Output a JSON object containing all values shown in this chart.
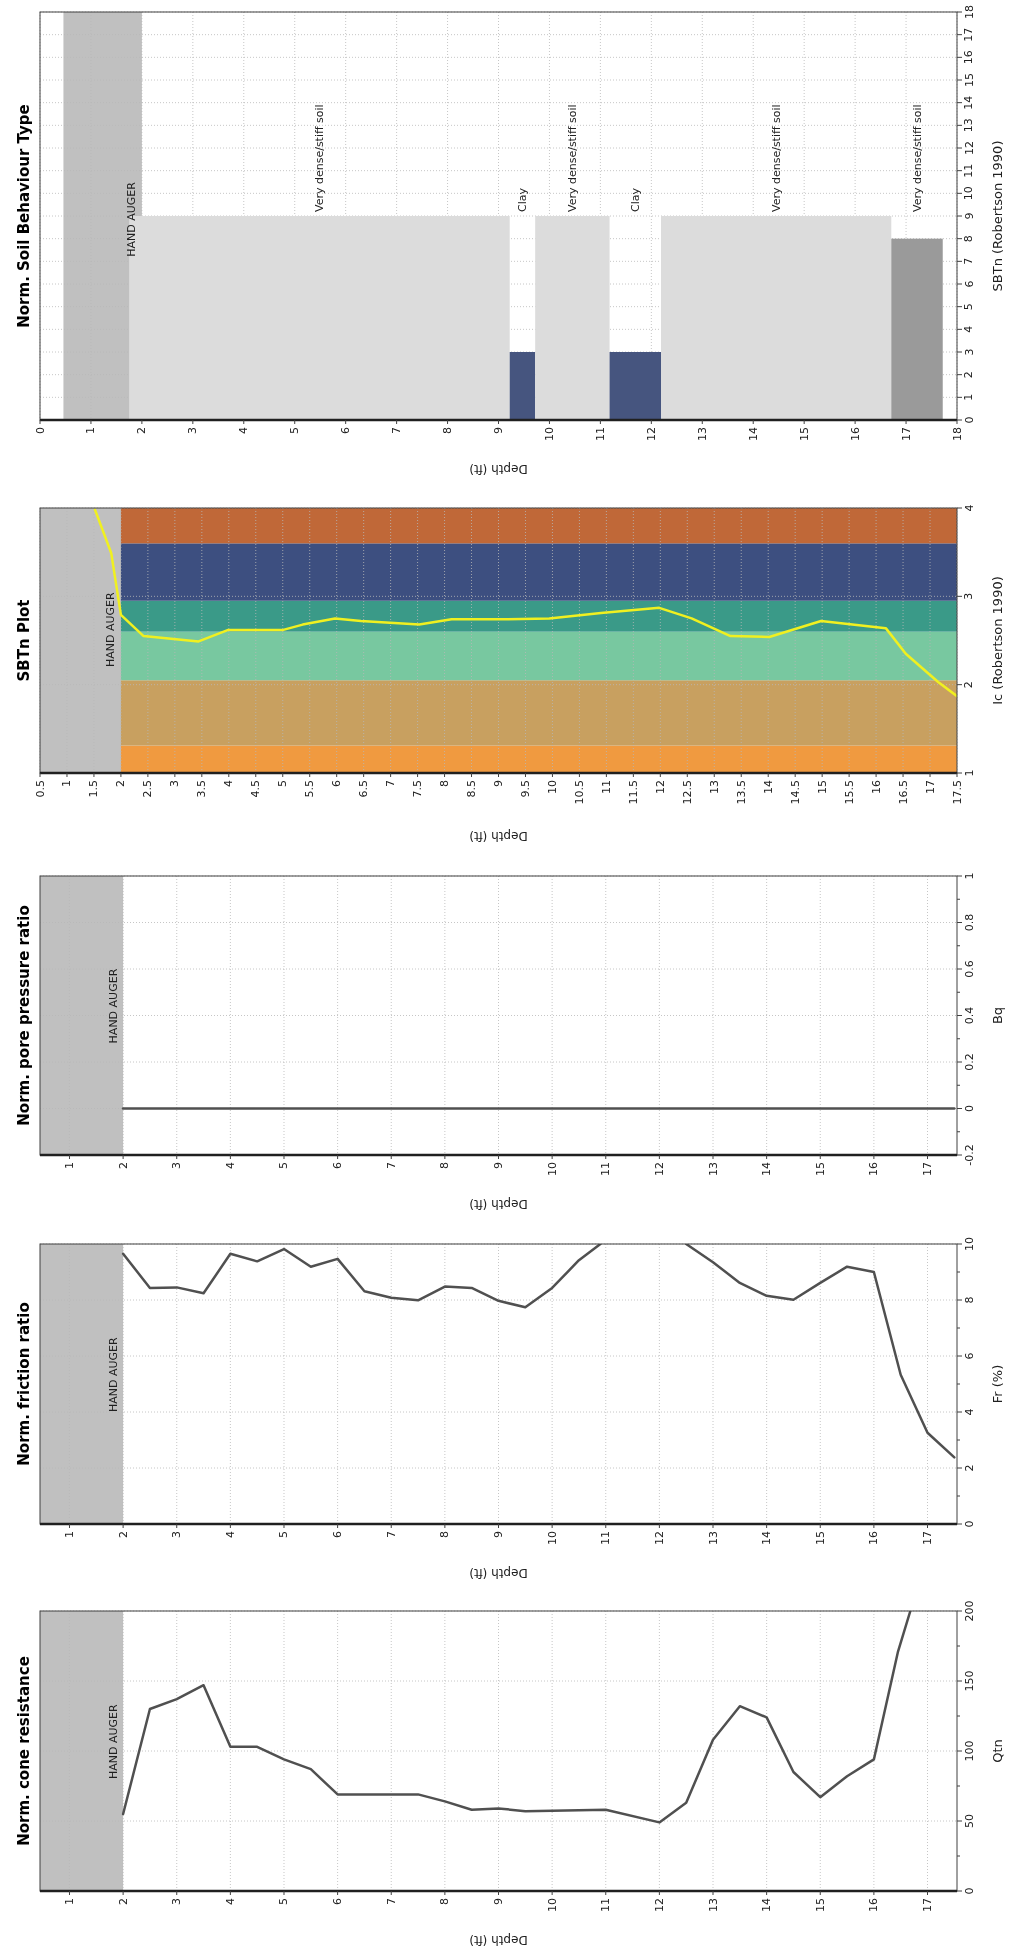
{
  "chart_data": [
    {
      "type": "line",
      "title": "Norm. cone resistance",
      "xlabel": "Depth (ft)",
      "ylabel": "Qtn",
      "xlim": [
        0.45,
        17.55
      ],
      "xticks": [
        1,
        2,
        3,
        4,
        5,
        6,
        7,
        8,
        9,
        10,
        11,
        12,
        13,
        14,
        15,
        16,
        17
      ],
      "ylim": [
        0,
        200
      ],
      "yticks": [
        0,
        {
          "value": 25,
          "label": null
        },
        50,
        {
          "value": 75,
          "label": null
        },
        100,
        {
          "value": 125,
          "label": null
        },
        150,
        {
          "value": 175,
          "label": null
        },
        200
      ],
      "grid": true,
      "bands": [
        {
          "axis": "x",
          "from": 0.45,
          "to": 2,
          "label": "HAND AUGER",
          "color": "#c0c0c0"
        }
      ],
      "series": [
        {
          "color": "#505050",
          "x": [
            2,
            2.5,
            3,
            3.5,
            4,
            4.5,
            5,
            5.5,
            6,
            7.5,
            8,
            8.5,
            9,
            9.5,
            11,
            12,
            12.5,
            13,
            13.5,
            14,
            14.5,
            15,
            15.5,
            16,
            16.45,
            16.68
          ],
          "values": [
            55,
            130,
            137,
            147,
            103,
            103,
            94,
            87,
            69,
            69,
            64,
            58,
            59,
            57,
            58,
            49,
            63,
            108,
            132,
            124,
            85,
            67,
            82,
            94,
            171,
            200
          ]
        }
      ]
    },
    {
      "type": "line",
      "title": "Norm. friction ratio",
      "xlabel": "Depth (ft)",
      "ylabel": "Fr (%)",
      "xlim": [
        0.45,
        17.55
      ],
      "xticks": [
        1,
        2,
        3,
        4,
        5,
        6,
        7,
        8,
        9,
        10,
        11,
        12,
        13,
        14,
        15,
        16,
        17
      ],
      "ylim": [
        0,
        10
      ],
      "yticks": [
        0,
        {
          "value": 1,
          "label": null
        },
        2,
        {
          "value": 3,
          "label": null
        },
        4,
        {
          "value": 5,
          "label": null
        },
        6,
        {
          "value": 7,
          "label": null
        },
        8,
        {
          "value": 9,
          "label": null
        },
        10
      ],
      "grid": true,
      "bands": [
        {
          "axis": "x",
          "from": 0.45,
          "to": 2,
          "label": "HAND AUGER",
          "color": "#c0c0c0"
        }
      ],
      "series": [
        {
          "color": "#505050",
          "x": [
            2,
            2.5,
            3,
            3.5,
            4,
            4.5,
            5,
            5.5,
            6,
            6.5,
            7,
            7.5,
            8,
            8.5,
            9,
            9.5,
            10,
            10.5,
            10.9,
            11.7,
            12.5,
            13,
            13.5,
            14,
            14.5,
            15,
            15.5,
            16,
            16.5,
            17,
            17.5
          ],
          "values": [
            9.65,
            8.43,
            8.45,
            8.24,
            9.65,
            9.38,
            9.82,
            9.19,
            9.47,
            8.31,
            8.08,
            7.99,
            8.48,
            8.43,
            7.97,
            7.74,
            8.43,
            9.42,
            10,
            null,
            10,
            9.35,
            8.61,
            8.15,
            8.01,
            8.61,
            9.19,
            9.0,
            5.33,
            3.26,
            2.38
          ]
        }
      ]
    },
    {
      "type": "line",
      "title": "Norm. pore pressure ratio",
      "xlabel": "Depth (ft)",
      "ylabel": "Bq",
      "xlim": [
        0.45,
        17.55
      ],
      "xticks": [
        1,
        2,
        3,
        4,
        5,
        6,
        7,
        8,
        9,
        10,
        11,
        12,
        13,
        14,
        15,
        16,
        17
      ],
      "ylim": [
        -0.2,
        1
      ],
      "yticks": [
        -0.2,
        {
          "value": -0.1,
          "label": null
        },
        0,
        {
          "value": 0.1,
          "label": null
        },
        0.2,
        {
          "value": 0.3,
          "label": null
        },
        0.4,
        {
          "value": 0.5,
          "label": null
        },
        0.6,
        {
          "value": 0.7,
          "label": null
        },
        0.8,
        {
          "value": 0.9,
          "label": null
        },
        1
      ],
      "grid": true,
      "bands": [
        {
          "axis": "x",
          "from": 0.45,
          "to": 2,
          "label": "HAND AUGER",
          "color": "#c0c0c0"
        }
      ],
      "series": [
        {
          "color": "#505050",
          "x": [
            2,
            17.5
          ],
          "values": [
            0,
            0
          ]
        }
      ]
    },
    {
      "type": "line",
      "title": "SBTn Plot",
      "xlabel": "Depth (ft)",
      "ylabel": "Ic (Robertson 1990)",
      "xlim": [
        0.5,
        17.5
      ],
      "xticks": [
        0.5,
        1,
        1.5,
        2,
        2.5,
        3,
        3.5,
        4,
        4.5,
        5,
        5.5,
        6,
        6.5,
        7,
        7.5,
        8,
        8.5,
        9,
        9.5,
        10,
        10.5,
        11,
        11.5,
        12,
        12.5,
        13,
        13.5,
        14,
        14.5,
        15,
        15.5,
        16,
        16.5,
        17,
        17.5
      ],
      "ylim": [
        1,
        4
      ],
      "yticks": [
        1,
        2,
        3,
        4
      ],
      "grid": true,
      "bands": [
        {
          "axis": "y",
          "from": 1,
          "to": 1.31,
          "color": "#f09a40"
        },
        {
          "axis": "y",
          "from": 1.31,
          "to": 2.05,
          "color": "#c8a060"
        },
        {
          "axis": "y",
          "from": 2.05,
          "to": 2.6,
          "color": "#78c8a0"
        },
        {
          "axis": "y",
          "from": 2.6,
          "to": 2.95,
          "color": "#3a9a88"
        },
        {
          "axis": "y",
          "from": 2.95,
          "to": 3.6,
          "color": "#3d4f80"
        },
        {
          "axis": "y",
          "from": 3.6,
          "to": 4,
          "color": "#c06838"
        },
        {
          "axis": "x",
          "from": 0.5,
          "to": 2,
          "label": "HAND AUGER",
          "color": "#c0c0c0"
        }
      ],
      "series": [
        {
          "color": "#f0f020",
          "x": [
            1.52,
            1.82,
            2.0,
            2.42,
            3.44,
            3.99,
            5.01,
            5.37,
            5.97,
            6.45,
            7.53,
            8.13,
            9.09,
            9.94,
            10.9,
            11.98,
            12.58,
            13.3,
            14.02,
            14.98,
            16.18,
            16.55,
            17.15,
            17.5
          ],
          "values": [
            3.98,
            3.49,
            2.79,
            2.55,
            2.49,
            2.62,
            2.62,
            2.68,
            2.75,
            2.72,
            2.68,
            2.74,
            2.74,
            2.75,
            2.81,
            2.87,
            2.75,
            2.55,
            2.54,
            2.72,
            2.64,
            2.35,
            2.03,
            1.87
          ]
        }
      ]
    },
    {
      "type": "histogram",
      "title": "Norm. Soil Behaviour Type",
      "xlabel": "Depth (ft)",
      "ylabel": "SBTn (Robertson 1990)",
      "xlim": [
        0,
        18
      ],
      "xticks": [
        0,
        1,
        2,
        3,
        4,
        5,
        6,
        7,
        8,
        9,
        10,
        11,
        12,
        13,
        14,
        15,
        16,
        17,
        18
      ],
      "ylim": [
        0,
        18
      ],
      "yticks": [
        0,
        1,
        2,
        3,
        4,
        5,
        6,
        7,
        8,
        9,
        10,
        11,
        12,
        13,
        14,
        15,
        16,
        17,
        18
      ],
      "grid": true,
      "bands": [
        {
          "axis": "x",
          "from": 0.46,
          "to": 2,
          "label": "HAND AUGER",
          "color": "#c0c0c0"
        }
      ],
      "bins": [
        1.75,
        9.22,
        9.72,
        11.18,
        12.19,
        16.71,
        17.72
      ],
      "values": [
        9,
        3,
        9,
        3,
        9,
        8
      ],
      "colors": [
        "#dcdcdc",
        "#46557f",
        "#dcdcdc",
        "#46557f",
        "#dcdcdc",
        "#9a9a9a"
      ],
      "annotations": [
        "Very dense/stiff soil",
        "Clay",
        "Very dense/stiff soil",
        "Clay",
        "Very dense/stiff soil",
        "Very dense/stiff soil"
      ]
    }
  ]
}
